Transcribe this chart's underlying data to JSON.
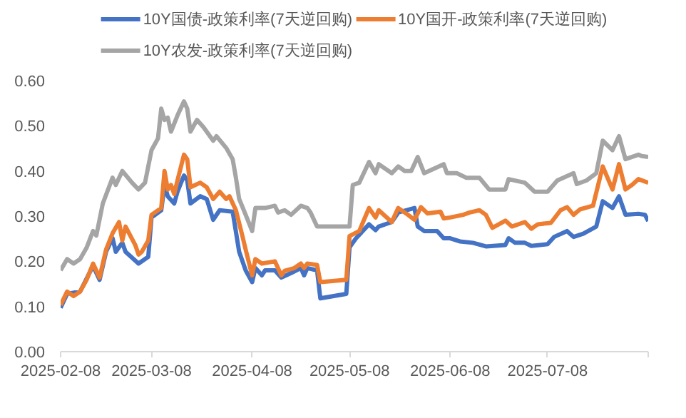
{
  "chart_data": {
    "type": "line",
    "legend": "top",
    "grid": false,
    "line_style": "solid",
    "marker": "none",
    "xlim": [
      "2025-02-08",
      "2025-08-08"
    ],
    "xticks": [
      {
        "value": "2025-02-08",
        "label": "2025-02-08"
      },
      {
        "value": "2025-03-08",
        "label": "2025-03-08"
      },
      {
        "value": "2025-04-08",
        "label": "2025-04-08"
      },
      {
        "value": "2025-05-08",
        "label": "2025-05-08"
      },
      {
        "value": "2025-06-08",
        "label": "2025-06-08"
      },
      {
        "value": "2025-07-08",
        "label": "2025-07-08"
      },
      {
        "value": "2025-08-08",
        "label": null
      }
    ],
    "ylim": [
      0,
      0.6
    ],
    "yticks": [
      {
        "value": 0,
        "label": "0.00"
      },
      {
        "value": 0.1,
        "label": "0.10"
      },
      {
        "value": 0.2,
        "label": "0.20"
      },
      {
        "value": 0.3,
        "label": "0.30"
      },
      {
        "value": 0.4,
        "label": "0.40"
      },
      {
        "value": 0.5,
        "label": "0.50"
      },
      {
        "value": 0.6,
        "label": "0.60"
      }
    ],
    "series": [
      {
        "name": "10Y国债-政策利率(7天逆回购)",
        "color": "#4472c4",
        "x": [
          "2025-02-08",
          "2025-02-10",
          "2025-02-14",
          "2025-02-18",
          "2025-02-20",
          "2025-02-22",
          "2025-02-24",
          "2025-02-25",
          "2025-02-27",
          "2025-02-28",
          "2025-03-04",
          "2025-03-07",
          "2025-03-08",
          "2025-03-11",
          "2025-03-12",
          "2025-03-13",
          "2025-03-15",
          "2025-03-16",
          "2025-03-18",
          "2025-03-19",
          "2025-03-20",
          "2025-03-23",
          "2025-03-25",
          "2025-03-27",
          "2025-03-29",
          "2025-04-02",
          "2025-04-04",
          "2025-04-06",
          "2025-04-08",
          "2025-04-09",
          "2025-04-11",
          "2025-04-12",
          "2025-04-15",
          "2025-04-17",
          "2025-04-20",
          "2025-04-23",
          "2025-04-24",
          "2025-04-25",
          "2025-04-28",
          "2025-04-29",
          "2025-05-07",
          "2025-05-08",
          "2025-05-10",
          "2025-05-14",
          "2025-05-16",
          "2025-05-17",
          "2025-05-21",
          "2025-05-23",
          "2025-05-28",
          "2025-05-29",
          "2025-05-31",
          "2025-06-04",
          "2025-06-06",
          "2025-06-08",
          "2025-06-11",
          "2025-06-15",
          "2025-06-19",
          "2025-06-25",
          "2025-06-26",
          "2025-06-28",
          "2025-07-01",
          "2025-07-03",
          "2025-07-08",
          "2025-07-10",
          "2025-07-14",
          "2025-07-16",
          "2025-07-19",
          "2025-07-23",
          "2025-07-25",
          "2025-07-28",
          "2025-07-30",
          "2025-08-01",
          "2025-08-05",
          "2025-08-07",
          "2025-08-08"
        ],
        "values": [
          0.097,
          0.128,
          0.133,
          0.19,
          0.159,
          0.221,
          0.251,
          0.221,
          0.241,
          0.221,
          0.195,
          0.21,
          0.297,
          0.313,
          0.369,
          0.344,
          0.328,
          0.354,
          0.39,
          0.379,
          0.328,
          0.344,
          0.338,
          0.292,
          0.313,
          0.31,
          0.221,
          0.18,
          0.154,
          0.185,
          0.169,
          0.18,
          0.18,
          0.164,
          0.174,
          0.185,
          0.169,
          0.185,
          0.18,
          0.118,
          0.128,
          0.231,
          0.251,
          0.282,
          0.269,
          0.277,
          0.287,
          0.308,
          0.318,
          0.277,
          0.267,
          0.267,
          0.251,
          0.251,
          0.244,
          0.241,
          0.233,
          0.236,
          0.251,
          0.241,
          0.241,
          0.234,
          0.238,
          0.254,
          0.267,
          0.254,
          0.261,
          0.277,
          0.333,
          0.318,
          0.344,
          0.303,
          0.305,
          0.303,
          0.289
        ]
      },
      {
        "name": "10Y国开-政策利率(7天逆回购)",
        "color": "#ed7d31",
        "x": [
          "2025-02-08",
          "2025-02-10",
          "2025-02-12",
          "2025-02-14",
          "2025-02-16",
          "2025-02-18",
          "2025-02-20",
          "2025-02-22",
          "2025-02-24",
          "2025-02-26",
          "2025-02-27",
          "2025-02-28",
          "2025-03-03",
          "2025-03-04",
          "2025-03-05",
          "2025-03-07",
          "2025-03-08",
          "2025-03-11",
          "2025-03-12",
          "2025-03-13",
          "2025-03-14",
          "2025-03-15",
          "2025-03-16",
          "2025-03-18",
          "2025-03-19",
          "2025-03-20",
          "2025-03-23",
          "2025-03-25",
          "2025-03-27",
          "2025-03-29",
          "2025-03-31",
          "2025-04-01",
          "2025-04-03",
          "2025-04-05",
          "2025-04-06",
          "2025-04-08",
          "2025-04-09",
          "2025-04-11",
          "2025-04-15",
          "2025-04-17",
          "2025-04-18",
          "2025-04-21",
          "2025-04-23",
          "2025-04-24",
          "2025-04-25",
          "2025-04-28",
          "2025-04-29",
          "2025-05-07",
          "2025-05-08",
          "2025-05-11",
          "2025-05-14",
          "2025-05-16",
          "2025-05-17",
          "2025-05-21",
          "2025-05-23",
          "2025-05-26",
          "2025-05-28",
          "2025-05-30",
          "2025-06-01",
          "2025-06-05",
          "2025-06-06",
          "2025-06-08",
          "2025-06-12",
          "2025-06-14",
          "2025-06-17",
          "2025-06-19",
          "2025-06-21",
          "2025-06-25",
          "2025-06-27",
          "2025-07-01",
          "2025-07-03",
          "2025-07-05",
          "2025-07-09",
          "2025-07-12",
          "2025-07-14",
          "2025-07-16",
          "2025-07-18",
          "2025-07-22",
          "2025-07-25",
          "2025-07-28",
          "2025-07-30",
          "2025-08-01",
          "2025-08-03",
          "2025-08-05",
          "2025-08-08"
        ],
        "values": [
          0.103,
          0.133,
          0.123,
          0.133,
          0.159,
          0.195,
          0.164,
          0.226,
          0.262,
          0.287,
          0.246,
          0.277,
          0.236,
          0.215,
          0.221,
          0.246,
          0.303,
          0.318,
          0.4,
          0.359,
          0.369,
          0.349,
          0.379,
          0.436,
          0.426,
          0.364,
          0.374,
          0.364,
          0.338,
          0.354,
          0.338,
          0.344,
          0.313,
          0.256,
          0.226,
          0.169,
          0.205,
          0.195,
          0.2,
          0.169,
          0.179,
          0.185,
          0.195,
          0.185,
          0.195,
          0.192,
          0.154,
          0.159,
          0.256,
          0.267,
          0.318,
          0.297,
          0.313,
          0.287,
          0.318,
          0.303,
          0.292,
          0.32,
          0.306,
          0.31,
          0.295,
          0.297,
          0.303,
          0.308,
          0.313,
          0.303,
          0.274,
          0.29,
          0.277,
          0.287,
          0.272,
          0.282,
          0.285,
          0.313,
          0.32,
          0.303,
          0.315,
          0.323,
          0.41,
          0.359,
          0.415,
          0.359,
          0.369,
          0.382,
          0.374
        ]
      },
      {
        "name": "10Y农发-政策利率(7天逆回购)",
        "color": "#a5a5a5",
        "x": [
          "2025-02-08",
          "2025-02-10",
          "2025-02-12",
          "2025-02-14",
          "2025-02-16",
          "2025-02-18",
          "2025-02-19",
          "2025-02-21",
          "2025-02-24",
          "2025-02-25",
          "2025-02-27",
          "2025-03-02",
          "2025-03-04",
          "2025-03-06",
          "2025-03-08",
          "2025-03-10",
          "2025-03-11",
          "2025-03-12",
          "2025-03-13",
          "2025-03-14",
          "2025-03-16",
          "2025-03-18",
          "2025-03-19",
          "2025-03-20",
          "2025-03-22",
          "2025-03-24",
          "2025-03-27",
          "2025-03-28",
          "2025-03-31",
          "2025-04-02",
          "2025-04-03",
          "2025-04-04",
          "2025-04-06",
          "2025-04-08",
          "2025-04-09",
          "2025-04-12",
          "2025-04-15",
          "2025-04-16",
          "2025-04-18",
          "2025-04-20",
          "2025-04-23",
          "2025-04-25",
          "2025-04-26",
          "2025-04-28",
          "2025-05-08",
          "2025-05-09",
          "2025-05-11",
          "2025-05-14",
          "2025-05-16",
          "2025-05-17",
          "2025-05-21",
          "2025-05-23",
          "2025-05-25",
          "2025-05-27",
          "2025-05-29",
          "2025-05-31",
          "2025-06-06",
          "2025-06-07",
          "2025-06-10",
          "2025-06-13",
          "2025-06-17",
          "2025-06-20",
          "2025-06-25",
          "2025-06-26",
          "2025-07-01",
          "2025-07-04",
          "2025-07-08",
          "2025-07-11",
          "2025-07-16",
          "2025-07-17",
          "2025-07-20",
          "2025-07-23",
          "2025-07-25",
          "2025-07-28",
          "2025-07-30",
          "2025-08-01",
          "2025-08-05",
          "2025-08-06",
          "2025-08-08"
        ],
        "values": [
          0.18,
          0.205,
          0.195,
          0.205,
          0.23,
          0.267,
          0.257,
          0.328,
          0.385,
          0.369,
          0.4,
          0.374,
          0.359,
          0.374,
          0.446,
          0.472,
          0.538,
          0.513,
          0.518,
          0.487,
          0.523,
          0.554,
          0.538,
          0.487,
          0.513,
          0.497,
          0.467,
          0.477,
          0.451,
          0.426,
          0.385,
          0.338,
          0.303,
          0.267,
          0.318,
          0.318,
          0.323,
          0.308,
          0.313,
          0.303,
          0.323,
          0.318,
          0.308,
          0.277,
          0.277,
          0.369,
          0.374,
          0.42,
          0.395,
          0.415,
          0.395,
          0.41,
          0.4,
          0.4,
          0.431,
          0.395,
          0.415,
          0.395,
          0.395,
          0.385,
          0.385,
          0.359,
          0.359,
          0.382,
          0.374,
          0.354,
          0.354,
          0.379,
          0.395,
          0.371,
          0.379,
          0.395,
          0.467,
          0.446,
          0.477,
          0.426,
          0.436,
          0.433,
          0.431
        ]
      }
    ]
  }
}
